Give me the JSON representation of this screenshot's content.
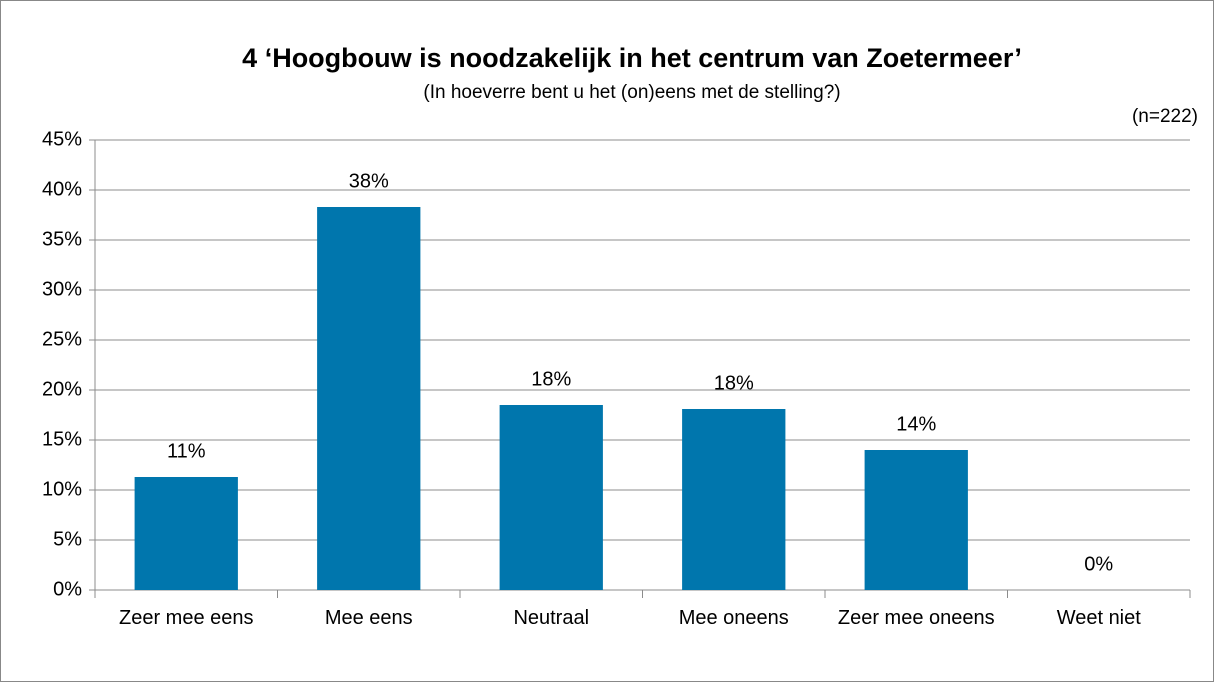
{
  "chart_data": {
    "type": "bar",
    "title": "4 ‘Hoogbouw is noodzakelijk in het centrum van Zoetermeer’",
    "subtitle": "(In hoeverre bent u het (on)eens met de stelling?)",
    "annotation": "(n=222)",
    "categories": [
      "Zeer mee eens",
      "Mee eens",
      "Neutraal",
      "Mee oneens",
      "Zeer mee oneens",
      "Weet niet"
    ],
    "values": [
      11.3,
      38.3,
      18.5,
      18.1,
      14.0,
      0
    ],
    "value_labels": [
      "11%",
      "38%",
      "18%",
      "18%",
      "14%",
      "0%"
    ],
    "color": "#0076ad",
    "ylim": [
      0,
      45
    ],
    "yticks": [
      {
        "value": 0,
        "label": "0%"
      },
      {
        "value": 5,
        "label": "5%"
      },
      {
        "value": 10,
        "label": "10%"
      },
      {
        "value": 15,
        "label": "15%"
      },
      {
        "value": 20,
        "label": "20%"
      },
      {
        "value": 25,
        "label": "25%"
      },
      {
        "value": 30,
        "label": "30%"
      },
      {
        "value": 35,
        "label": "35%"
      },
      {
        "value": 40,
        "label": "40%"
      },
      {
        "value": 45,
        "label": "45%"
      }
    ],
    "grid": true
  }
}
